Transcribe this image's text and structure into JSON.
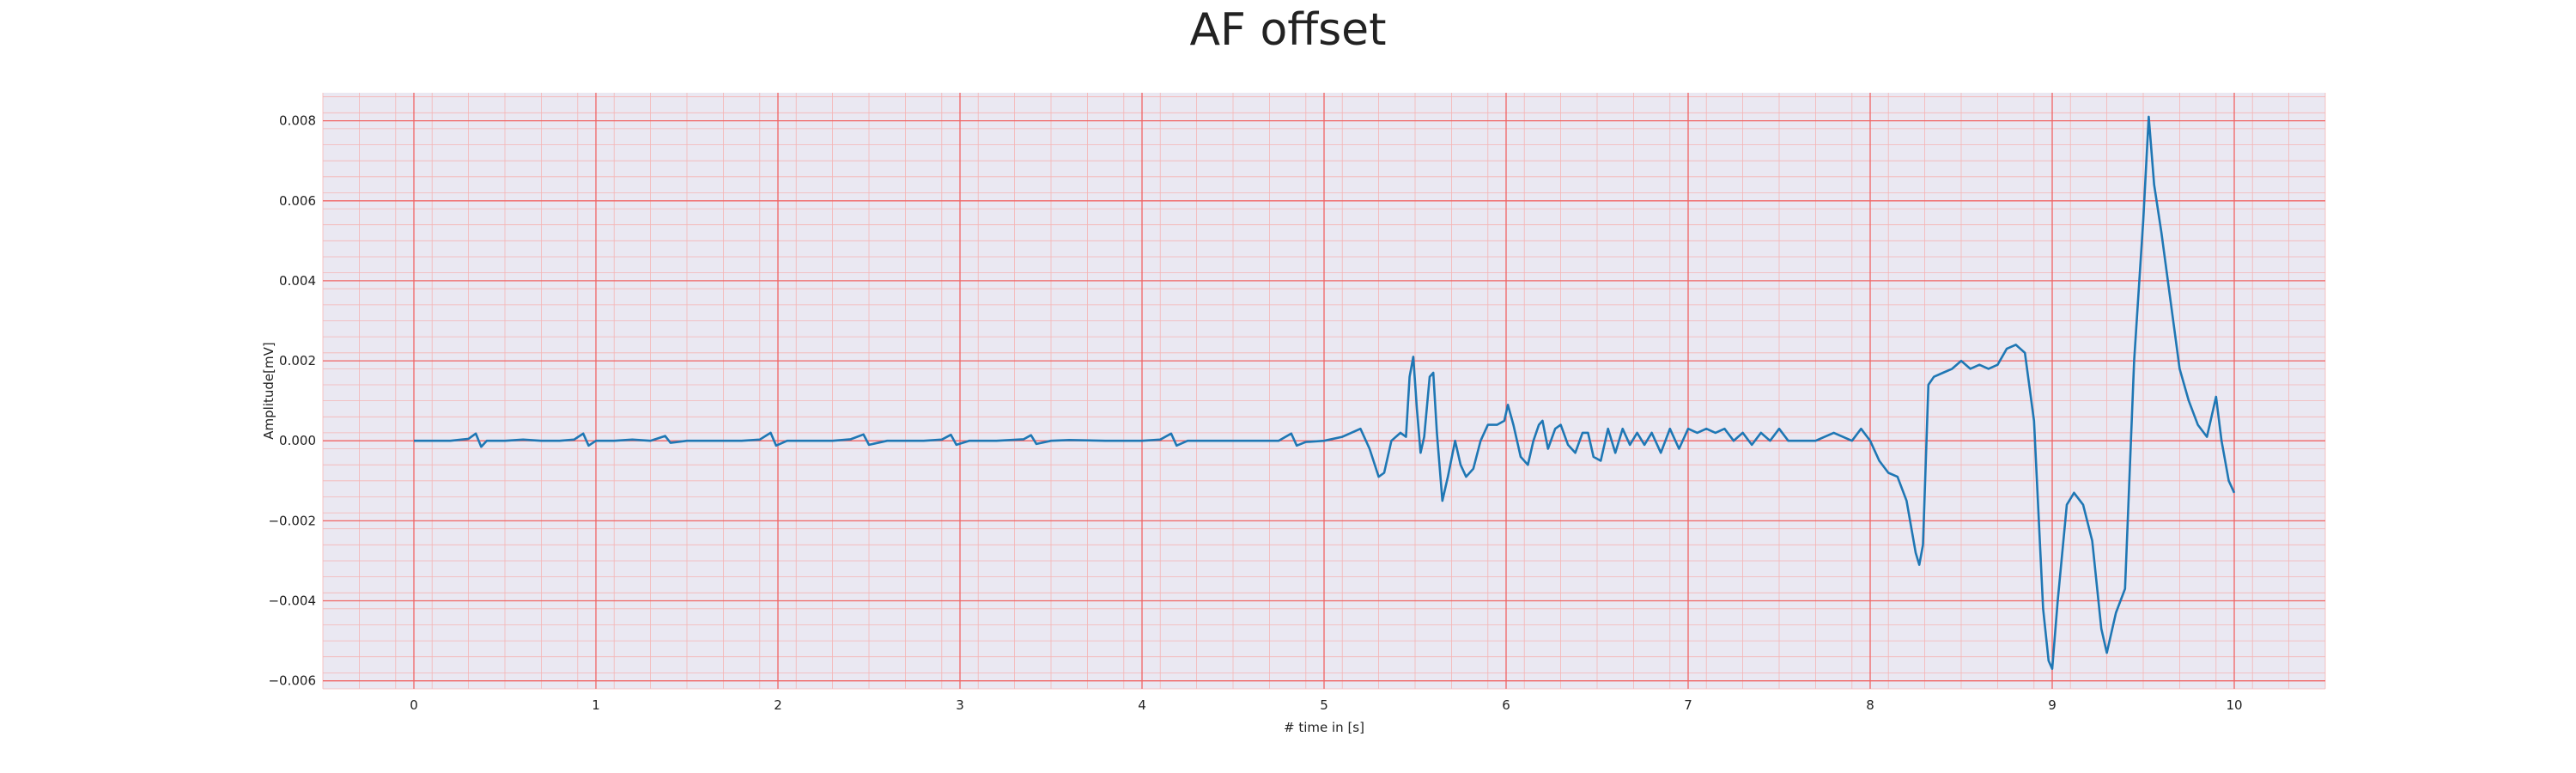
{
  "chart_data": {
    "type": "line",
    "title": "AF offset",
    "xlabel": "# time in [s]",
    "ylabel": "Amplitude[mV]",
    "xlim": [
      -0.5,
      10.5
    ],
    "ylim": [
      -0.0062,
      0.0087
    ],
    "xticks": [
      0,
      1,
      2,
      3,
      4,
      5,
      6,
      7,
      8,
      9,
      10
    ],
    "xtick_labels": [
      "0",
      "1",
      "2",
      "3",
      "4",
      "5",
      "6",
      "7",
      "8",
      "9",
      "10"
    ],
    "yticks": [
      -0.006,
      -0.004,
      -0.002,
      0.0,
      0.002,
      0.004,
      0.006,
      0.008
    ],
    "ytick_labels": [
      "−0.006",
      "−0.004",
      "−0.002",
      "0.000",
      "0.002",
      "0.004",
      "0.006",
      "0.008"
    ],
    "grid": true,
    "minor_grid": true,
    "legend": "none",
    "colors": {
      "background": "#eae8f2",
      "major_grid": "#f06464",
      "minor_grid": "#f5b4b4",
      "line": "#1f77b4"
    },
    "series": [
      {
        "color": "#1f77b4",
        "points": [
          [
            0,
            0
          ],
          [
            0.1,
            0
          ],
          [
            0.2,
            0
          ],
          [
            0.3,
            5e-05
          ],
          [
            0.34,
            0.00018
          ],
          [
            0.37,
            -0.00015
          ],
          [
            0.4,
            0
          ],
          [
            0.5,
            0
          ],
          [
            0.6,
            3e-05
          ],
          [
            0.7,
            0
          ],
          [
            0.8,
            0
          ],
          [
            0.88,
            3e-05
          ],
          [
            0.93,
            0.00018
          ],
          [
            0.96,
            -0.00012
          ],
          [
            1.0,
            0
          ],
          [
            1.1,
            0
          ],
          [
            1.2,
            3e-05
          ],
          [
            1.3,
            0
          ],
          [
            1.38,
            0.00012
          ],
          [
            1.41,
            -5e-05
          ],
          [
            1.5,
            0
          ],
          [
            1.6,
            0
          ],
          [
            1.7,
            0
          ],
          [
            1.8,
            0
          ],
          [
            1.9,
            3e-05
          ],
          [
            1.96,
            0.0002
          ],
          [
            1.99,
            -0.00012
          ],
          [
            2.05,
            0
          ],
          [
            2.2,
            0
          ],
          [
            2.3,
            0
          ],
          [
            2.4,
            4e-05
          ],
          [
            2.47,
            0.00016
          ],
          [
            2.5,
            -0.0001
          ],
          [
            2.6,
            0
          ],
          [
            2.8,
            0
          ],
          [
            2.9,
            3e-05
          ],
          [
            2.95,
            0.00015
          ],
          [
            2.98,
            -0.0001
          ],
          [
            3.05,
            0
          ],
          [
            3.2,
            0
          ],
          [
            3.35,
            4e-05
          ],
          [
            3.39,
            0.00014
          ],
          [
            3.42,
            -8e-05
          ],
          [
            3.5,
            0
          ],
          [
            3.6,
            2e-05
          ],
          [
            3.8,
            0
          ],
          [
            4.0,
            0
          ],
          [
            4.1,
            3e-05
          ],
          [
            4.16,
            0.00018
          ],
          [
            4.19,
            -0.00012
          ],
          [
            4.25,
            0
          ],
          [
            4.4,
            0
          ],
          [
            4.6,
            0
          ],
          [
            4.75,
            0
          ],
          [
            4.82,
            0.00018
          ],
          [
            4.85,
            -0.00012
          ],
          [
            4.9,
            -3e-05
          ],
          [
            5.0,
            0
          ],
          [
            5.1,
            0.0001
          ],
          [
            5.2,
            0.0003
          ],
          [
            5.25,
            -0.0002
          ],
          [
            5.3,
            -0.0009
          ],
          [
            5.33,
            -0.0008
          ],
          [
            5.37,
            0
          ],
          [
            5.42,
            0.0002
          ],
          [
            5.45,
            0.0001
          ],
          [
            5.47,
            0.0016
          ],
          [
            5.49,
            0.0021
          ],
          [
            5.51,
            0.0008
          ],
          [
            5.53,
            -0.0003
          ],
          [
            5.55,
            0.0001
          ],
          [
            5.58,
            0.0016
          ],
          [
            5.6,
            0.0017
          ],
          [
            5.62,
            0.0002
          ],
          [
            5.65,
            -0.0015
          ],
          [
            5.68,
            -0.0009
          ],
          [
            5.72,
            0
          ],
          [
            5.75,
            -0.0006
          ],
          [
            5.78,
            -0.0009
          ],
          [
            5.82,
            -0.0007
          ],
          [
            5.86,
            0
          ],
          [
            5.9,
            0.0004
          ],
          [
            5.95,
            0.0004
          ],
          [
            5.99,
            0.0005
          ],
          [
            6.01,
            0.0009
          ],
          [
            6.04,
            0.0004
          ],
          [
            6.08,
            -0.0004
          ],
          [
            6.12,
            -0.0006
          ],
          [
            6.15,
            0
          ],
          [
            6.18,
            0.0004
          ],
          [
            6.2,
            0.0005
          ],
          [
            6.23,
            -0.0002
          ],
          [
            6.27,
            0.0003
          ],
          [
            6.3,
            0.0004
          ],
          [
            6.34,
            -0.0001
          ],
          [
            6.38,
            -0.0003
          ],
          [
            6.42,
            0.0002
          ],
          [
            6.45,
            0.0002
          ],
          [
            6.48,
            -0.0004
          ],
          [
            6.52,
            -0.0005
          ],
          [
            6.56,
            0.0003
          ],
          [
            6.6,
            -0.0003
          ],
          [
            6.64,
            0.0003
          ],
          [
            6.68,
            -0.0001
          ],
          [
            6.72,
            0.0002
          ],
          [
            6.76,
            -0.0001
          ],
          [
            6.8,
            0.0002
          ],
          [
            6.85,
            -0.0003
          ],
          [
            6.9,
            0.0003
          ],
          [
            6.95,
            -0.0002
          ],
          [
            7.0,
            0.0003
          ],
          [
            7.05,
            0.0002
          ],
          [
            7.1,
            0.0003
          ],
          [
            7.15,
            0.0002
          ],
          [
            7.2,
            0.0003
          ],
          [
            7.25,
            0
          ],
          [
            7.3,
            0.0002
          ],
          [
            7.35,
            -0.0001
          ],
          [
            7.4,
            0.0002
          ],
          [
            7.45,
            0
          ],
          [
            7.5,
            0.0003
          ],
          [
            7.55,
            0
          ],
          [
            7.6,
            0
          ],
          [
            7.7,
            0
          ],
          [
            7.8,
            0.0002
          ],
          [
            7.85,
            0.0001
          ],
          [
            7.9,
            0
          ],
          [
            7.95,
            0.0003
          ],
          [
            8.0,
            0
          ],
          [
            8.05,
            -0.0005
          ],
          [
            8.1,
            -0.0008
          ],
          [
            8.15,
            -0.0009
          ],
          [
            8.2,
            -0.0015
          ],
          [
            8.25,
            -0.0028
          ],
          [
            8.27,
            -0.0031
          ],
          [
            8.29,
            -0.0026
          ],
          [
            8.32,
            0.0014
          ],
          [
            8.35,
            0.0016
          ],
          [
            8.4,
            0.0017
          ],
          [
            8.45,
            0.0018
          ],
          [
            8.5,
            0.002
          ],
          [
            8.55,
            0.0018
          ],
          [
            8.6,
            0.0019
          ],
          [
            8.65,
            0.0018
          ],
          [
            8.7,
            0.0019
          ],
          [
            8.75,
            0.0023
          ],
          [
            8.8,
            0.0024
          ],
          [
            8.85,
            0.0022
          ],
          [
            8.9,
            0.0005
          ],
          [
            8.95,
            -0.0042
          ],
          [
            8.98,
            -0.0055
          ],
          [
            9.0,
            -0.0057
          ],
          [
            9.03,
            -0.004
          ],
          [
            9.08,
            -0.0016
          ],
          [
            9.12,
            -0.0013
          ],
          [
            9.17,
            -0.0016
          ],
          [
            9.22,
            -0.0025
          ],
          [
            9.27,
            -0.0047
          ],
          [
            9.3,
            -0.0053
          ],
          [
            9.35,
            -0.0043
          ],
          [
            9.4,
            -0.0037
          ],
          [
            9.45,
            0.002
          ],
          [
            9.5,
            0.0055
          ],
          [
            9.53,
            0.0081
          ],
          [
            9.56,
            0.0064
          ],
          [
            9.6,
            0.0052
          ],
          [
            9.65,
            0.0035
          ],
          [
            9.7,
            0.0018
          ],
          [
            9.75,
            0.001
          ],
          [
            9.8,
            0.0004
          ],
          [
            9.85,
            0.0001
          ],
          [
            9.9,
            0.0011
          ],
          [
            9.93,
            0
          ],
          [
            9.97,
            -0.001
          ],
          [
            10.0,
            -0.0013
          ]
        ]
      }
    ]
  }
}
